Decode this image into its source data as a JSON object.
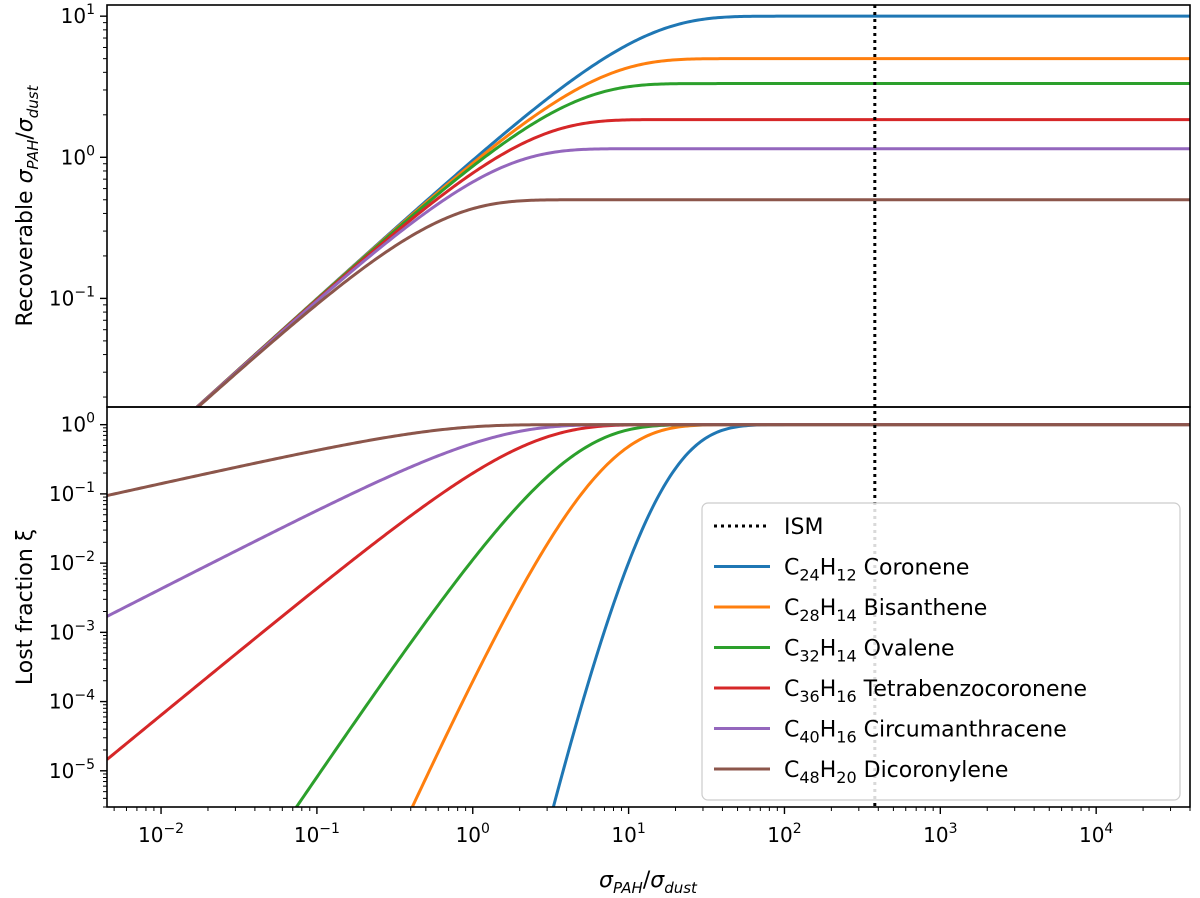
{
  "chart_data": [
    {
      "panel": "top",
      "type": "line",
      "xscale": "log",
      "yscale": "log",
      "ylabel": "Recoverable σPAH/σdust",
      "xlim": [
        0.0045,
        40000
      ],
      "ylim": [
        0.017,
        12
      ],
      "yticks": [
        {
          "value": 0.1,
          "base": "10",
          "exp": "−1"
        },
        {
          "value": 1,
          "base": "10",
          "exp": "0"
        },
        {
          "value": 10,
          "base": "10",
          "exp": "1"
        }
      ],
      "vline": {
        "x": 380,
        "label": "ISM",
        "style": "dotted",
        "color": "#000000"
      },
      "series": [
        {
          "name": "C24H12 Coronene",
          "color": "#1f77b4",
          "k": 1.0,
          "plateau": 10.0
        },
        {
          "name": "C28H14 Bisanthene",
          "color": "#ff7f0e",
          "k": 1.0,
          "plateau": 5.0
        },
        {
          "name": "C32H14 Ovalene",
          "color": "#2ca02c",
          "k": 1.0,
          "plateau": 3.33
        },
        {
          "name": "C36H16 Tetrabenzocoronene",
          "color": "#d62728",
          "k": 1.0,
          "plateau": 1.85
        },
        {
          "name": "C40H16 Circumanthracene",
          "color": "#9467bd",
          "k": 1.0,
          "plateau": 1.15
        },
        {
          "name": "C48H20 Dicoronylene",
          "color": "#8c564b",
          "k": 1.0,
          "plateau": 0.5
        }
      ]
    },
    {
      "panel": "bottom",
      "type": "line",
      "xscale": "log",
      "yscale": "log",
      "ylabel": "Lost fraction ξ",
      "xlabel": "σPAH/σdust",
      "xlim": [
        0.0045,
        40000
      ],
      "ylim": [
        3e-06,
        1.8
      ],
      "xticks": [
        {
          "value": 0.01,
          "base": "10",
          "exp": "−2"
        },
        {
          "value": 0.1,
          "base": "10",
          "exp": "−1"
        },
        {
          "value": 1,
          "base": "10",
          "exp": "0"
        },
        {
          "value": 10,
          "base": "10",
          "exp": "1"
        },
        {
          "value": 100,
          "base": "10",
          "exp": "2"
        },
        {
          "value": 1000,
          "base": "10",
          "exp": "3"
        },
        {
          "value": 10000,
          "base": "10",
          "exp": "4"
        }
      ],
      "yticks": [
        {
          "value": 1e-05,
          "base": "10",
          "exp": "−5"
        },
        {
          "value": 0.0001,
          "base": "10",
          "exp": "−4"
        },
        {
          "value": 0.001,
          "base": "10",
          "exp": "−3"
        },
        {
          "value": 0.01,
          "base": "10",
          "exp": "−2"
        },
        {
          "value": 0.1,
          "base": "10",
          "exp": "−1"
        },
        {
          "value": 1,
          "base": "10",
          "exp": "0"
        }
      ],
      "legend": {
        "position": "lower right",
        "entries": [
          {
            "label": "ISM",
            "color": "#000000",
            "style": "dotted"
          },
          {
            "C": "24",
            "H": "12",
            "name": "Coronene",
            "color": "#1f77b4"
          },
          {
            "C": "28",
            "H": "14",
            "name": "Bisanthene",
            "color": "#ff7f0e"
          },
          {
            "C": "32",
            "H": "14",
            "name": "Ovalene",
            "color": "#2ca02c"
          },
          {
            "C": "36",
            "H": "16",
            "name": "Tetrabenzocoronene",
            "color": "#d62728"
          },
          {
            "C": "40",
            "H": "16",
            "name": "Circumanthracene",
            "color": "#9467bd"
          },
          {
            "C": "48",
            "H": "20",
            "name": "Dicoronylene",
            "color": "#8c564b"
          }
        ]
      },
      "series": [
        {
          "name": "C24H12 Coronene",
          "color": "#1f77b4",
          "n": 10
        },
        {
          "name": "C28H14 Bisanthene",
          "color": "#ff7f0e",
          "n": 5
        },
        {
          "name": "C32H14 Ovalene",
          "color": "#2ca02c",
          "n": 3.33
        },
        {
          "name": "C36H16 Tetrabenzocoronene",
          "color": "#d62728",
          "n": 1.85
        },
        {
          "name": "C40H16 Circumanthracene",
          "color": "#9467bd",
          "n": 1.15
        },
        {
          "name": "C48H20 Dicoronylene",
          "color": "#8c564b",
          "n": 0.5
        }
      ]
    }
  ],
  "labels": {
    "top_ylabel_prefix": "Recoverable ",
    "sigma": "σ",
    "pah": "PAH",
    "dust": "dust",
    "slash": "/",
    "bottom_ylabel": "Lost fraction ξ",
    "legend_c": "C",
    "legend_h": "H"
  }
}
